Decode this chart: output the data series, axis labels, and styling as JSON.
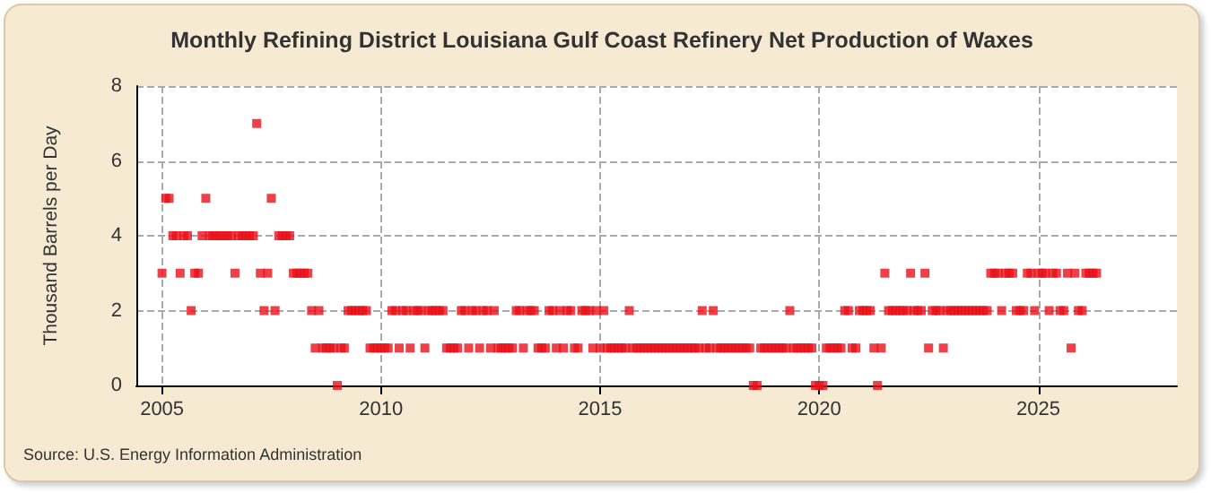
{
  "chart_data": {
    "type": "scatter",
    "title": "Monthly Refining District Louisiana Gulf Coast Refinery Net Production of Waxes",
    "ylabel": "Thousand Barrels per Day",
    "annotations": [
      "Source: U.S. Energy Information Administration"
    ],
    "xlim": [
      "2004-06",
      "2028-03"
    ],
    "xticks": [
      {
        "value": "2005",
        "label": "2005"
      },
      {
        "value": "2010",
        "label": "2010"
      },
      {
        "value": "2015",
        "label": "2015"
      },
      {
        "value": "2020",
        "label": "2020"
      },
      {
        "value": "2025",
        "label": "2025"
      }
    ],
    "ylim": [
      0,
      8
    ],
    "yticks": [
      0,
      2,
      4,
      6,
      8
    ],
    "grid": true,
    "marker": "square",
    "series": [
      {
        "color": "#e8101a",
        "x": [
          "2005-01",
          "2005-02",
          "2005-03",
          "2005-04",
          "2005-05",
          "2005-06",
          "2005-07",
          "2005-08",
          "2005-09",
          "2005-10",
          "2005-11",
          "2005-12",
          "2006-01",
          "2006-02",
          "2006-03",
          "2006-04",
          "2006-05",
          "2006-06",
          "2006-07",
          "2006-08",
          "2006-09",
          "2006-10",
          "2006-11",
          "2006-12",
          "2007-01",
          "2007-02",
          "2007-03",
          "2007-04",
          "2007-05",
          "2007-06",
          "2007-07",
          "2007-08",
          "2007-09",
          "2007-10",
          "2007-11",
          "2007-12",
          "2008-01",
          "2008-02",
          "2008-03",
          "2008-04",
          "2008-05",
          "2008-06",
          "2008-07",
          "2008-08",
          "2008-09",
          "2008-10",
          "2008-11",
          "2008-12",
          "2009-01",
          "2009-02",
          "2009-03",
          "2009-04",
          "2009-05",
          "2009-06",
          "2009-07",
          "2009-08",
          "2009-09",
          "2009-10",
          "2009-11",
          "2009-12",
          "2010-01",
          "2010-02",
          "2010-03",
          "2010-04",
          "2010-05",
          "2010-06",
          "2010-07",
          "2010-08",
          "2010-09",
          "2010-10",
          "2010-11",
          "2010-12",
          "2011-01",
          "2011-02",
          "2011-03",
          "2011-04",
          "2011-05",
          "2011-06",
          "2011-07",
          "2011-08",
          "2011-09",
          "2011-10",
          "2011-11",
          "2011-12",
          "2012-01",
          "2012-02",
          "2012-03",
          "2012-04",
          "2012-05",
          "2012-06",
          "2012-07",
          "2012-08",
          "2012-09",
          "2012-10",
          "2012-11",
          "2012-12",
          "2013-01",
          "2013-02",
          "2013-03",
          "2013-04",
          "2013-05",
          "2013-06",
          "2013-07",
          "2013-08",
          "2013-09",
          "2013-10",
          "2013-11",
          "2013-12",
          "2014-01",
          "2014-02",
          "2014-03",
          "2014-04",
          "2014-05",
          "2014-06",
          "2014-07",
          "2014-08",
          "2014-09",
          "2014-10",
          "2014-11",
          "2014-12",
          "2015-01",
          "2015-02",
          "2015-03",
          "2015-04",
          "2015-05",
          "2015-06",
          "2015-07",
          "2015-08",
          "2015-09",
          "2015-10",
          "2015-11",
          "2015-12",
          "2016-01",
          "2016-02",
          "2016-03",
          "2016-04",
          "2016-05",
          "2016-06",
          "2016-07",
          "2016-08",
          "2016-09",
          "2016-10",
          "2016-11",
          "2016-12",
          "2017-01",
          "2017-02",
          "2017-03",
          "2017-04",
          "2017-05",
          "2017-06",
          "2017-07",
          "2017-08",
          "2017-09",
          "2017-10",
          "2017-11",
          "2017-12",
          "2018-01",
          "2018-02",
          "2018-03",
          "2018-04",
          "2018-05",
          "2018-06",
          "2018-07",
          "2018-08",
          "2018-09",
          "2018-10",
          "2018-11",
          "2018-12",
          "2019-01",
          "2019-02",
          "2019-03",
          "2019-04",
          "2019-05",
          "2019-06",
          "2019-07",
          "2019-08",
          "2019-09",
          "2019-10",
          "2019-11",
          "2019-12",
          "2020-01",
          "2020-02",
          "2020-03",
          "2020-04",
          "2020-05",
          "2020-06",
          "2020-07",
          "2020-08",
          "2020-09",
          "2020-10",
          "2020-11",
          "2020-12",
          "2021-01",
          "2021-02",
          "2021-03",
          "2021-04",
          "2021-05",
          "2021-06",
          "2021-07",
          "2021-08",
          "2021-09",
          "2021-10",
          "2021-11",
          "2021-12",
          "2022-01",
          "2022-02",
          "2022-03",
          "2022-04",
          "2022-05",
          "2022-06",
          "2022-07",
          "2022-08",
          "2022-09",
          "2022-10",
          "2022-11",
          "2022-12",
          "2023-01",
          "2023-02",
          "2023-03",
          "2023-04",
          "2023-05",
          "2023-06",
          "2023-07",
          "2023-08",
          "2023-09",
          "2023-10",
          "2023-11",
          "2023-12",
          "2024-01",
          "2024-02",
          "2024-03",
          "2024-04",
          "2024-05",
          "2024-06",
          "2024-07",
          "2024-08",
          "2024-09",
          "2024-10",
          "2024-11",
          "2024-12",
          "2025-01",
          "2025-02",
          "2025-03",
          "2025-04",
          "2025-05",
          "2025-06",
          "2025-07",
          "2025-08",
          "2025-09",
          "2025-10",
          "2025-11",
          "2025-12",
          "2026-01",
          "2026-02",
          "2026-03",
          "2026-04",
          "2026-05"
        ],
        "values": [
          3,
          5,
          5,
          4,
          4,
          3,
          4,
          4,
          2,
          3,
          3,
          4,
          5,
          4,
          4,
          4,
          4,
          4,
          4,
          4,
          3,
          4,
          4,
          4,
          4,
          4,
          7,
          3,
          2,
          3,
          5,
          2,
          4,
          4,
          4,
          4,
          3,
          3,
          3,
          3,
          3,
          2,
          1,
          2,
          1,
          1,
          1,
          1,
          0,
          1,
          1,
          2,
          2,
          2,
          2,
          2,
          2,
          1,
          1,
          1,
          1,
          1,
          1,
          2,
          2,
          1,
          2,
          2,
          1,
          2,
          2,
          2,
          1,
          2,
          2,
          2,
          2,
          2,
          1,
          1,
          1,
          1,
          2,
          2,
          1,
          2,
          2,
          1,
          2,
          2,
          1,
          2,
          1,
          1,
          1,
          1,
          1,
          2,
          2,
          1,
          2,
          2,
          2,
          1,
          1,
          1,
          2,
          2,
          1,
          2,
          1,
          2,
          2,
          1,
          1,
          2,
          2,
          2,
          1,
          2,
          1,
          2,
          1,
          1,
          1,
          1,
          1,
          1,
          2,
          1,
          1,
          1,
          1,
          1,
          1,
          1,
          1,
          1,
          1,
          1,
          1,
          1,
          1,
          1,
          1,
          1,
          1,
          1,
          2,
          1,
          1,
          2,
          1,
          1,
          1,
          1,
          1,
          1,
          1,
          1,
          1,
          1,
          0,
          0,
          1,
          1,
          1,
          1,
          1,
          1,
          1,
          1,
          2,
          1,
          1,
          1,
          1,
          1,
          1,
          0,
          0,
          0,
          1,
          1,
          1,
          1,
          1,
          2,
          2,
          1,
          1,
          2,
          2,
          2,
          2,
          1,
          0,
          1,
          3,
          2,
          2,
          2,
          2,
          2,
          2,
          3,
          2,
          2,
          2,
          3,
          1,
          2,
          2,
          2,
          1,
          2,
          2,
          2,
          2,
          2,
          2,
          2,
          2,
          2,
          2,
          2,
          2,
          3,
          3,
          3,
          2,
          3,
          3,
          3,
          2,
          2,
          2,
          3,
          3,
          2,
          3,
          3,
          3,
          2,
          3,
          3,
          2,
          2,
          3,
          1,
          3,
          2,
          2,
          3,
          3,
          3,
          3
        ]
      }
    ]
  }
}
